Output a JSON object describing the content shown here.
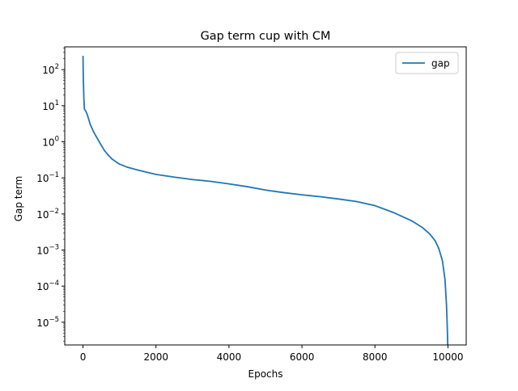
{
  "chart_data": {
    "type": "line",
    "title": "Gap term cup with CM",
    "xlabel": "Epochs",
    "ylabel": "Gap term",
    "yscale": "log",
    "xlim": [
      -500,
      10500
    ],
    "ylim_log10": [
      -5.63,
      2.63
    ],
    "x_ticks": [
      {
        "value": 0,
        "label": "0"
      },
      {
        "value": 2000,
        "label": "2000"
      },
      {
        "value": 4000,
        "label": "4000"
      },
      {
        "value": 6000,
        "label": "6000"
      },
      {
        "value": 8000,
        "label": "8000"
      },
      {
        "value": 10000,
        "label": "10000"
      }
    ],
    "y_ticks": [
      {
        "exp": 2,
        "base": "10",
        "sup": "2"
      },
      {
        "exp": 1,
        "base": "10",
        "sup": "1"
      },
      {
        "exp": 0,
        "base": "10",
        "sup": "0"
      },
      {
        "exp": -1,
        "base": "10",
        "sup": "−1"
      },
      {
        "exp": -2,
        "base": "10",
        "sup": "−2"
      },
      {
        "exp": -3,
        "base": "10",
        "sup": "−3"
      },
      {
        "exp": -4,
        "base": "10",
        "sup": "−4"
      },
      {
        "exp": -5,
        "base": "10",
        "sup": "−5"
      }
    ],
    "grid": false,
    "legend_position": "top-right",
    "series": [
      {
        "name": "gap",
        "color": "#1f77b4",
        "points": [
          [
            0,
            240
          ],
          [
            10,
            50
          ],
          [
            25,
            15
          ],
          [
            40,
            8
          ],
          [
            80,
            7
          ],
          [
            120,
            5.5
          ],
          [
            200,
            3
          ],
          [
            300,
            1.8
          ],
          [
            400,
            1.2
          ],
          [
            500,
            0.8
          ],
          [
            600,
            0.55
          ],
          [
            700,
            0.42
          ],
          [
            800,
            0.33
          ],
          [
            900,
            0.28
          ],
          [
            1000,
            0.24
          ],
          [
            1200,
            0.2
          ],
          [
            1500,
            0.165
          ],
          [
            2000,
            0.125
          ],
          [
            2500,
            0.105
          ],
          [
            3000,
            0.09
          ],
          [
            3500,
            0.08
          ],
          [
            4000,
            0.068
          ],
          [
            4500,
            0.057
          ],
          [
            5000,
            0.046
          ],
          [
            5500,
            0.039
          ],
          [
            6000,
            0.034
          ],
          [
            6500,
            0.03
          ],
          [
            7000,
            0.026
          ],
          [
            7500,
            0.022
          ],
          [
            8000,
            0.017
          ],
          [
            8500,
            0.011
          ],
          [
            9000,
            0.0065
          ],
          [
            9300,
            0.0042
          ],
          [
            9500,
            0.0028
          ],
          [
            9650,
            0.0018
          ],
          [
            9750,
            0.0011
          ],
          [
            9850,
            0.0005
          ],
          [
            9920,
            0.00015
          ],
          [
            9960,
            3e-05
          ],
          [
            9980,
            8e-06
          ],
          [
            9995,
            2.3e-06
          ]
        ]
      }
    ]
  }
}
